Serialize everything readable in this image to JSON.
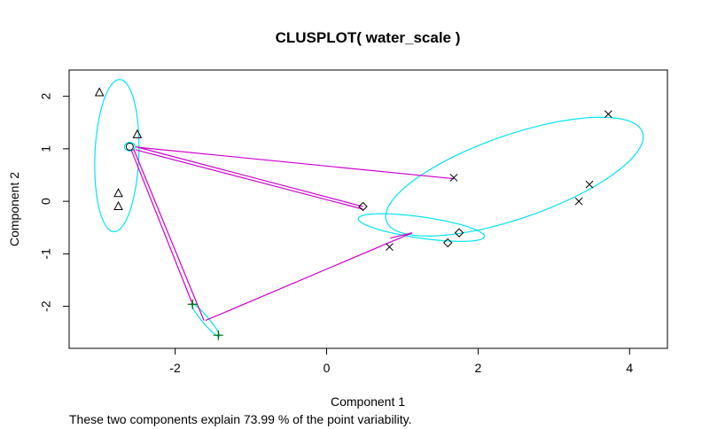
{
  "chart_data": {
    "type": "scatter",
    "title": "CLUSPLOT( water_scale )",
    "xlabel": "Component 1",
    "ylabel": "Component 2",
    "subtitle": "These two components explain 73.99 % of the point variability.",
    "xlim": [
      -3.4,
      4.5
    ],
    "ylim": [
      -2.8,
      2.5
    ],
    "xticks": [
      -2,
      0,
      2,
      4
    ],
    "yticks": [
      -2,
      -1,
      0,
      1,
      2
    ],
    "grid": false,
    "legend": "none",
    "colors": {
      "ellipse": "#00e5ee",
      "line": "#cc00cc",
      "point": "#000000",
      "point_plus": "#006400"
    },
    "clusters": [
      {
        "marker": "triangle",
        "points": [
          [
            -3.0,
            2.07
          ],
          [
            -2.5,
            1.27
          ],
          [
            -2.75,
            0.15
          ],
          [
            -2.75,
            -0.1
          ]
        ],
        "ellipse": {
          "cx": -2.77,
          "cy": 0.87,
          "rx": 0.29,
          "ry": 1.45,
          "angle": -1.5
        }
      },
      {
        "marker": "circle",
        "points": [
          [
            -2.6,
            1.04
          ]
        ],
        "ellipse": {
          "cx": -2.6,
          "cy": 1.04,
          "rx": 0.07,
          "ry": 0.08,
          "angle": 0
        }
      },
      {
        "marker": "cross",
        "points": [
          [
            1.68,
            0.45
          ],
          [
            3.72,
            1.66
          ],
          [
            3.47,
            0.32
          ],
          [
            3.33,
            0.0
          ],
          [
            0.83,
            -0.87
          ]
        ],
        "ellipse": {
          "cx": 2.48,
          "cy": 0.47,
          "rx": 1.9,
          "ry": 0.75,
          "angle": 29
        }
      },
      {
        "marker": "diamond",
        "points": [
          [
            0.48,
            -0.1
          ],
          [
            1.6,
            -0.79
          ],
          [
            1.75,
            -0.6
          ]
        ],
        "ellipse": {
          "cx": 1.25,
          "cy": -0.5,
          "rx": 0.85,
          "ry": 0.2,
          "angle": -12
        }
      },
      {
        "marker": "plus",
        "points": [
          [
            -1.77,
            -1.96
          ],
          [
            -1.43,
            -2.55
          ]
        ],
        "ellipse": {
          "cx": -1.6,
          "cy": -2.26,
          "rx": 0.36,
          "ry": 0.05,
          "angle": -60
        }
      }
    ],
    "distance_lines": [
      [
        [
          -2.5,
          1.03
        ],
        [
          1.68,
          0.43
        ]
      ],
      [
        [
          -2.52,
          1.04
        ],
        [
          0.48,
          -0.1
        ]
      ],
      [
        [
          -2.52,
          0.98
        ],
        [
          0.48,
          -0.15
        ]
      ],
      [
        [
          -2.55,
          1.0
        ],
        [
          -1.62,
          -2.27
        ]
      ],
      [
        [
          -2.58,
          0.98
        ],
        [
          -1.77,
          -1.96
        ]
      ],
      [
        [
          -1.6,
          -2.27
        ],
        [
          1.13,
          -0.6
        ]
      ],
      [
        [
          1.13,
          -0.6
        ],
        [
          0.84,
          -0.7
        ]
      ]
    ]
  }
}
